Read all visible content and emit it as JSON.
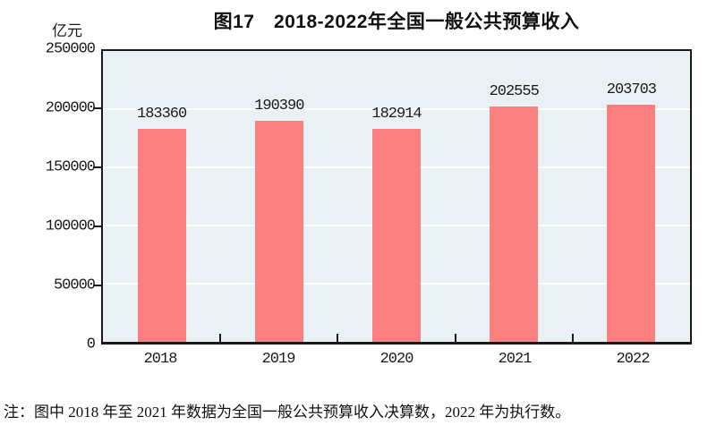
{
  "chart_data": {
    "type": "bar",
    "title": "图17　2018-2022年全国一般公共预算收入",
    "unit_label": "亿元",
    "categories": [
      "2018",
      "2019",
      "2020",
      "2021",
      "2022"
    ],
    "values": [
      183360,
      190390,
      182914,
      202555,
      203703
    ],
    "ylim": [
      0,
      250000
    ],
    "yticks": [
      0,
      50000,
      100000,
      150000,
      200000,
      250000
    ],
    "grid": "horizontal-white-gridlines",
    "legend": "none",
    "bar_color": "#fa8080",
    "plot_background": "#eaf1f4",
    "frame_color": "#1a1a1a",
    "note": "注：图中 2018 年至 2021 年数据为全国一般公共预算收入决算数，2022 年为执行数。"
  }
}
